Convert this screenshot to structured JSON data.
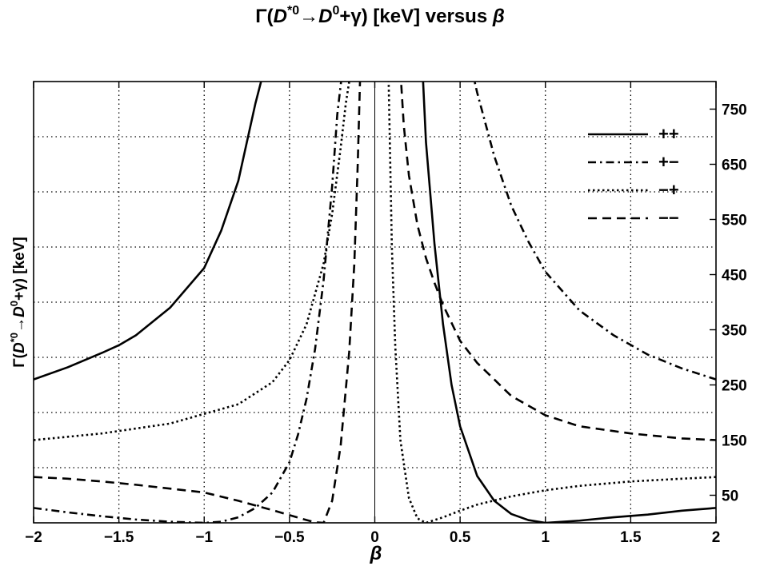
{
  "chart_data": {
    "type": "line",
    "title": {
      "prefix": "Γ(",
      "d1": "D",
      "d1_sup": "*0",
      "arrow": "→",
      "d2": "D",
      "d2_sup": "0",
      "tail": "+γ)  [keV]  versus ",
      "beta": "β"
    },
    "xlabel": "β",
    "ylabel": {
      "prefix": "Γ(",
      "d1": "D",
      "d1_sup": "*0",
      "arrow": "→",
      "d2": "D",
      "d2_sup": "0",
      "tail": "+γ)  [keV]"
    },
    "xlim": [
      -2,
      2
    ],
    "ylim": [
      0,
      800
    ],
    "xticks": [
      -2,
      -1.5,
      -1,
      -0.5,
      0,
      0.5,
      1,
      1.5,
      2
    ],
    "xtick_labels": [
      "−2",
      "−1.5",
      "−1",
      "−0.5",
      "0",
      "0.5",
      "1",
      "1.5",
      "2"
    ],
    "yticks": [
      50,
      150,
      250,
      350,
      450,
      550,
      650,
      750
    ],
    "ytick_labels": [
      "50",
      "150",
      "250",
      "350",
      "450",
      "550",
      "650",
      "750"
    ],
    "y_axis_side": "right",
    "grid_y": [
      100,
      200,
      300,
      400,
      500,
      600,
      700
    ],
    "grid": true,
    "legend_position": "top-right",
    "series": [
      {
        "name": "++",
        "style": "solid",
        "x": [
          -2,
          -1.8,
          -1.6,
          -1.5,
          -1.4,
          -1.2,
          -1.0,
          -0.9,
          -0.8,
          -0.75,
          -0.7,
          -0.65,
          0.28,
          0.3,
          0.35,
          0.4,
          0.45,
          0.5,
          0.6,
          0.7,
          0.8,
          0.9,
          1.0,
          1.2,
          1.4,
          1.6,
          1.8,
          2.0
        ],
        "y": [
          260,
          282,
          308,
          322,
          340,
          390,
          462,
          530,
          620,
          690,
          760,
          820,
          820,
          690,
          505,
          360,
          250,
          175,
          85,
          40,
          16,
          5,
          0,
          4,
          10,
          15,
          22,
          27
        ]
      },
      {
        "name": "+−",
        "style": "dashdot",
        "x": [
          -2,
          -1.8,
          -1.6,
          -1.4,
          -1.2,
          -1.0,
          -0.9,
          -0.8,
          -0.7,
          -0.6,
          -0.5,
          -0.45,
          -0.4,
          -0.35,
          -0.3,
          -0.25,
          -0.22,
          -0.19,
          0.57,
          0.6,
          0.7,
          0.8,
          0.9,
          1.0,
          1.2,
          1.4,
          1.6,
          1.8,
          2.0
        ],
        "y": [
          27,
          19,
          12,
          6,
          2,
          0,
          2,
          10,
          27,
          55,
          110,
          160,
          225,
          315,
          440,
          610,
          740,
          820,
          820,
          780,
          665,
          575,
          510,
          455,
          385,
          340,
          305,
          280,
          260
        ]
      },
      {
        "name": "−+",
        "style": "dotted",
        "x": [
          -2,
          -1.6,
          -1.2,
          -0.8,
          -0.6,
          -0.5,
          -0.4,
          -0.3,
          -0.25,
          -0.2,
          -0.17,
          -0.14,
          0.08,
          0.1,
          0.12,
          0.15,
          0.2,
          0.25,
          0.3,
          0.4,
          0.5,
          0.6,
          0.8,
          1.0,
          1.2,
          1.5,
          1.8,
          2.0
        ],
        "y": [
          150,
          162,
          180,
          215,
          255,
          295,
          360,
          470,
          560,
          680,
          760,
          820,
          820,
          500,
          320,
          150,
          45,
          8,
          0,
          10,
          22,
          33,
          48,
          59,
          67,
          75,
          80,
          83
        ]
      },
      {
        "name": "−−",
        "style": "dashed",
        "x": [
          -2,
          -1.8,
          -1.6,
          -1.4,
          -1.2,
          -1.0,
          -0.8,
          -0.6,
          -0.5,
          -0.4,
          -0.35,
          -0.3,
          -0.25,
          -0.2,
          -0.15,
          -0.12,
          -0.1,
          -0.085,
          0.15,
          0.17,
          0.2,
          0.25,
          0.3,
          0.35,
          0.4,
          0.5,
          0.6,
          0.8,
          1.0,
          1.2,
          1.5,
          1.8,
          2.0
        ],
        "y": [
          83,
          80,
          75,
          69,
          62,
          55,
          40,
          23,
          14,
          5,
          1,
          0,
          40,
          140,
          310,
          470,
          650,
          820,
          820,
          720,
          630,
          540,
          480,
          435,
          395,
          330,
          290,
          230,
          195,
          175,
          162,
          153,
          150
        ]
      }
    ]
  }
}
